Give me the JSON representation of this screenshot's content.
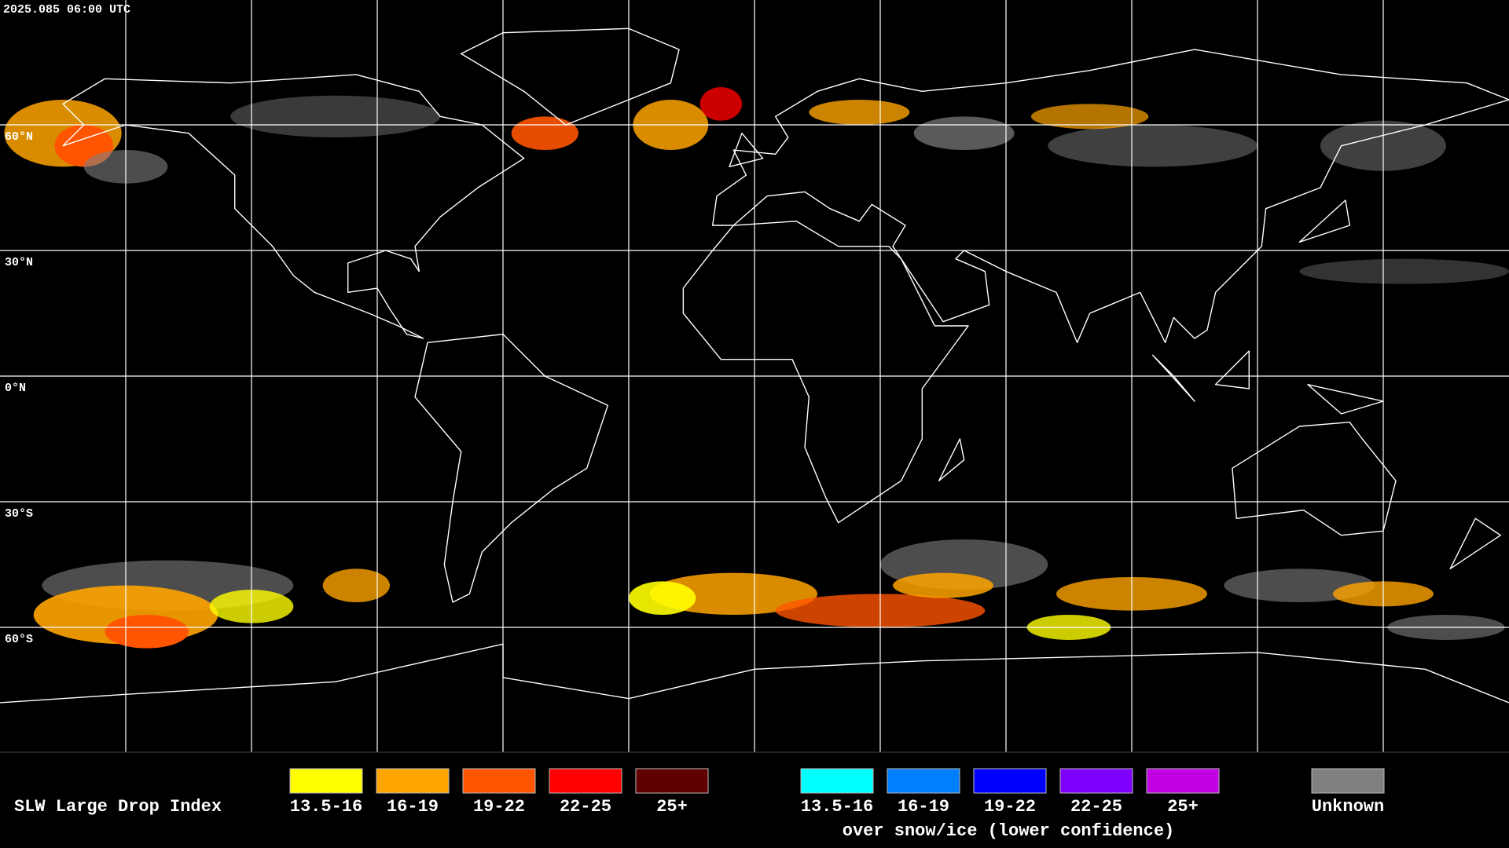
{
  "header": {
    "timestamp": "2025.085 06:00 UTC"
  },
  "map": {
    "lat_labels": [
      "60°N",
      "30°N",
      "0°N",
      "30°S",
      "60°S"
    ]
  },
  "legend": {
    "title": "SLW Large Drop Index",
    "items": [
      {
        "label": "13.5-16",
        "color": "#ffff00"
      },
      {
        "label": "16-19",
        "color": "#ffa500"
      },
      {
        "label": "19-22",
        "color": "#ff5500"
      },
      {
        "label": "22-25",
        "color": "#ff0000"
      },
      {
        "label": "25+",
        "color": "#600000"
      }
    ],
    "snow_items": [
      {
        "label": "13.5-16",
        "color": "#00ffff"
      },
      {
        "label": "16-19",
        "color": "#0080ff"
      },
      {
        "label": "19-22",
        "color": "#0000ff"
      },
      {
        "label": "22-25",
        "color": "#8000ff"
      },
      {
        "label": "25+",
        "color": "#c000e0"
      }
    ],
    "snow_caption": "over snow/ice (lower confidence)",
    "unknown": {
      "label": "Unknown",
      "color": "#808080"
    }
  }
}
